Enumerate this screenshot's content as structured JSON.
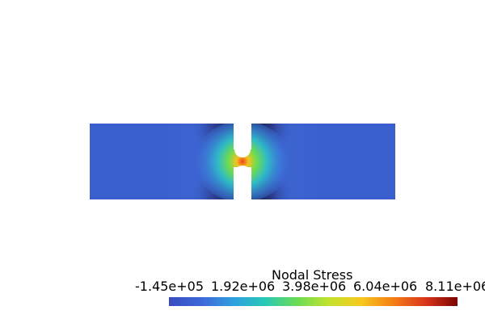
{
  "legend": {
    "title": "Nodal Stress",
    "ticks": [
      "-1.45e+05",
      "1.92e+06",
      "3.98e+06",
      "6.04e+06",
      "8.11e+06"
    ],
    "range": [
      -145000,
      8110000
    ]
  },
  "colormap": {
    "stops": [
      "#3b4cc0",
      "#3d68d8",
      "#2f9fe0",
      "#27c9b6",
      "#6bdc55",
      "#c4e22d",
      "#f7c81e",
      "#f57d15",
      "#d9361a",
      "#7a0403"
    ]
  },
  "specimen": {
    "background_value_color": "#3c5fcf",
    "shadow_color": "#181c4a",
    "hot_color": "#f0431b",
    "mid_color": "#5de06a"
  }
}
